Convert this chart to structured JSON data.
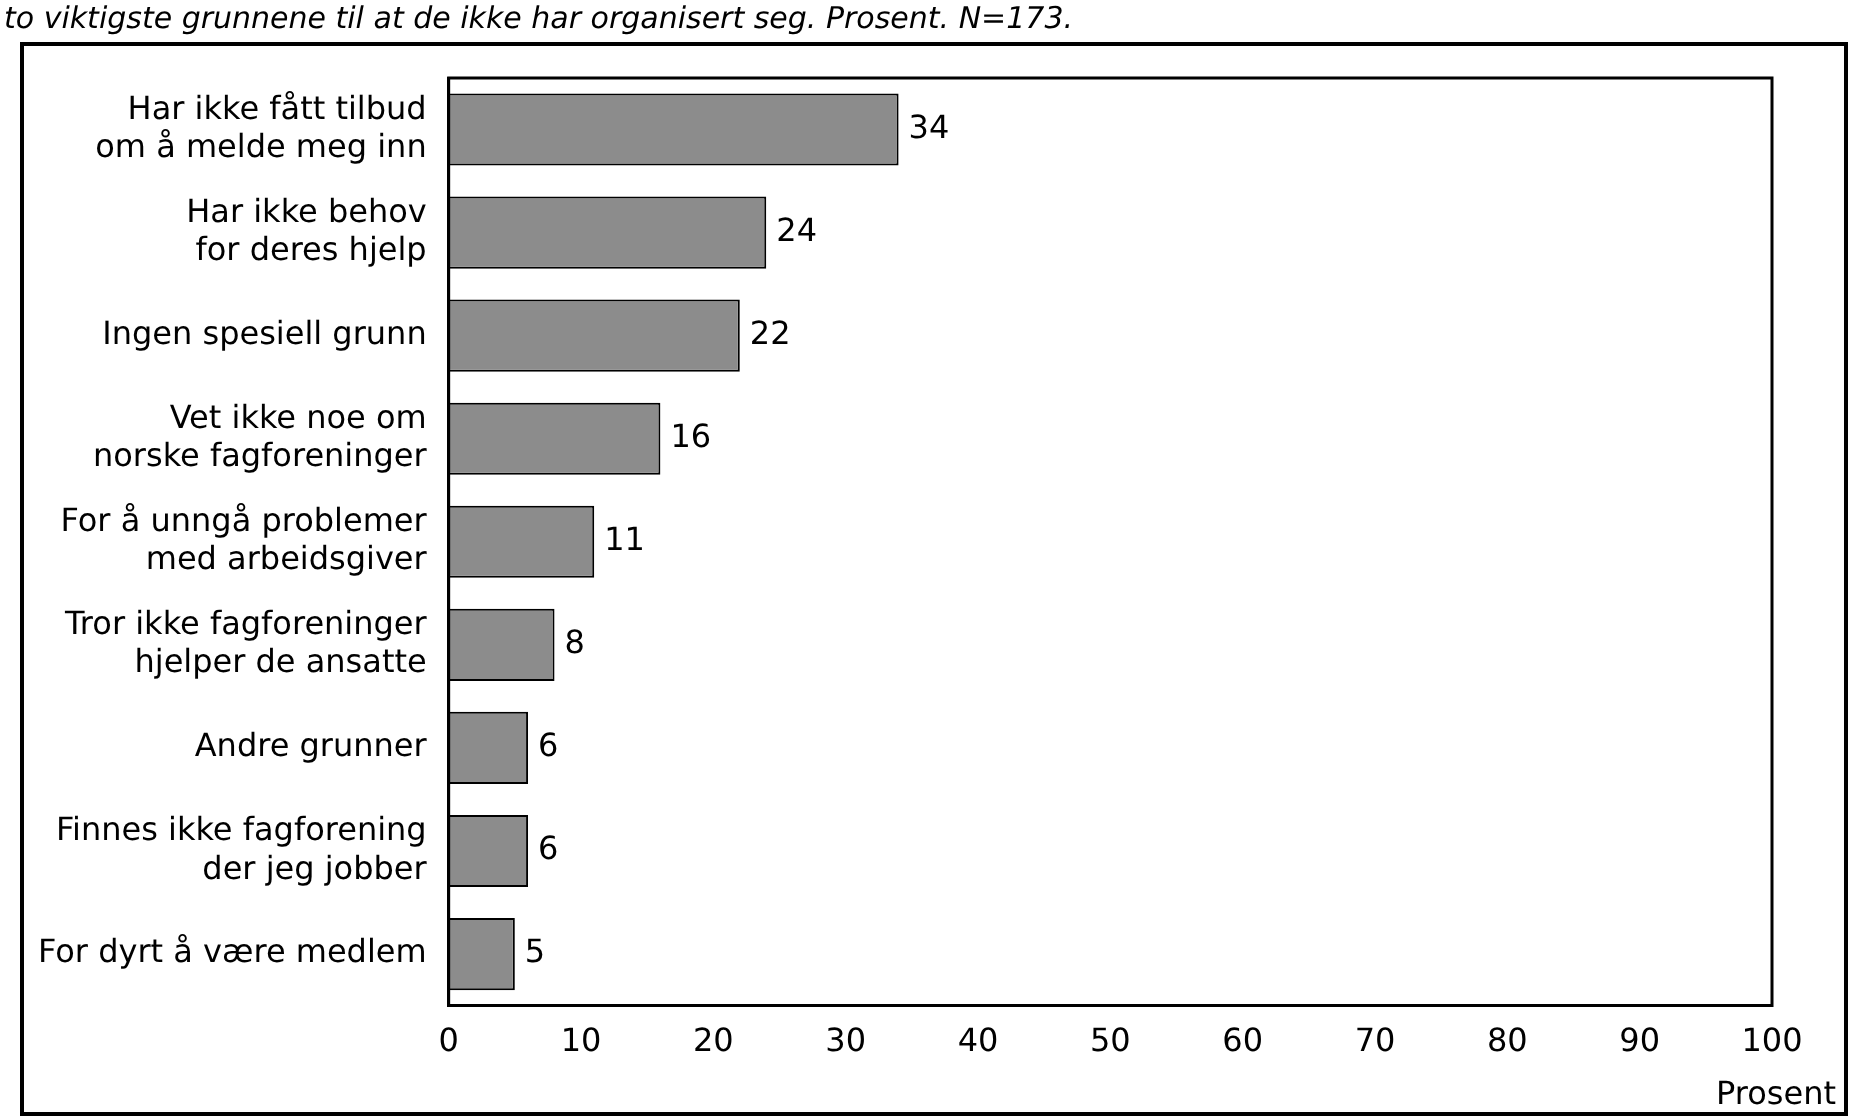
{
  "chart_data": {
    "type": "bar",
    "orientation": "horizontal",
    "title": "to viktigste grunnene til at de ikke har organisert seg. Prosent. N=173.",
    "xlabel": "Prosent",
    "categories": [
      "Har ikke fått tilbud\nom å melde meg inn",
      "Har ikke behov\nfor deres hjelp",
      "Ingen spesiell grunn",
      "Vet ikke noe om\nnorske fagforeninger",
      "For å unngå problemer\nmed arbeidsgiver",
      "Tror ikke fagforeninger\nhjelper de ansatte",
      "Andre grunner",
      "Finnes ikke fagforening\nder jeg jobber",
      "For dyrt å være medlem"
    ],
    "values": [
      34,
      24,
      22,
      16,
      11,
      8,
      6,
      6,
      5
    ],
    "color": "#8c8c8c",
    "xlim": [
      0,
      100
    ],
    "xticks": [
      0,
      10,
      20,
      30,
      40,
      50,
      60,
      70,
      80,
      90,
      100
    ],
    "grid": false,
    "legend": false,
    "data_labels": true
  }
}
